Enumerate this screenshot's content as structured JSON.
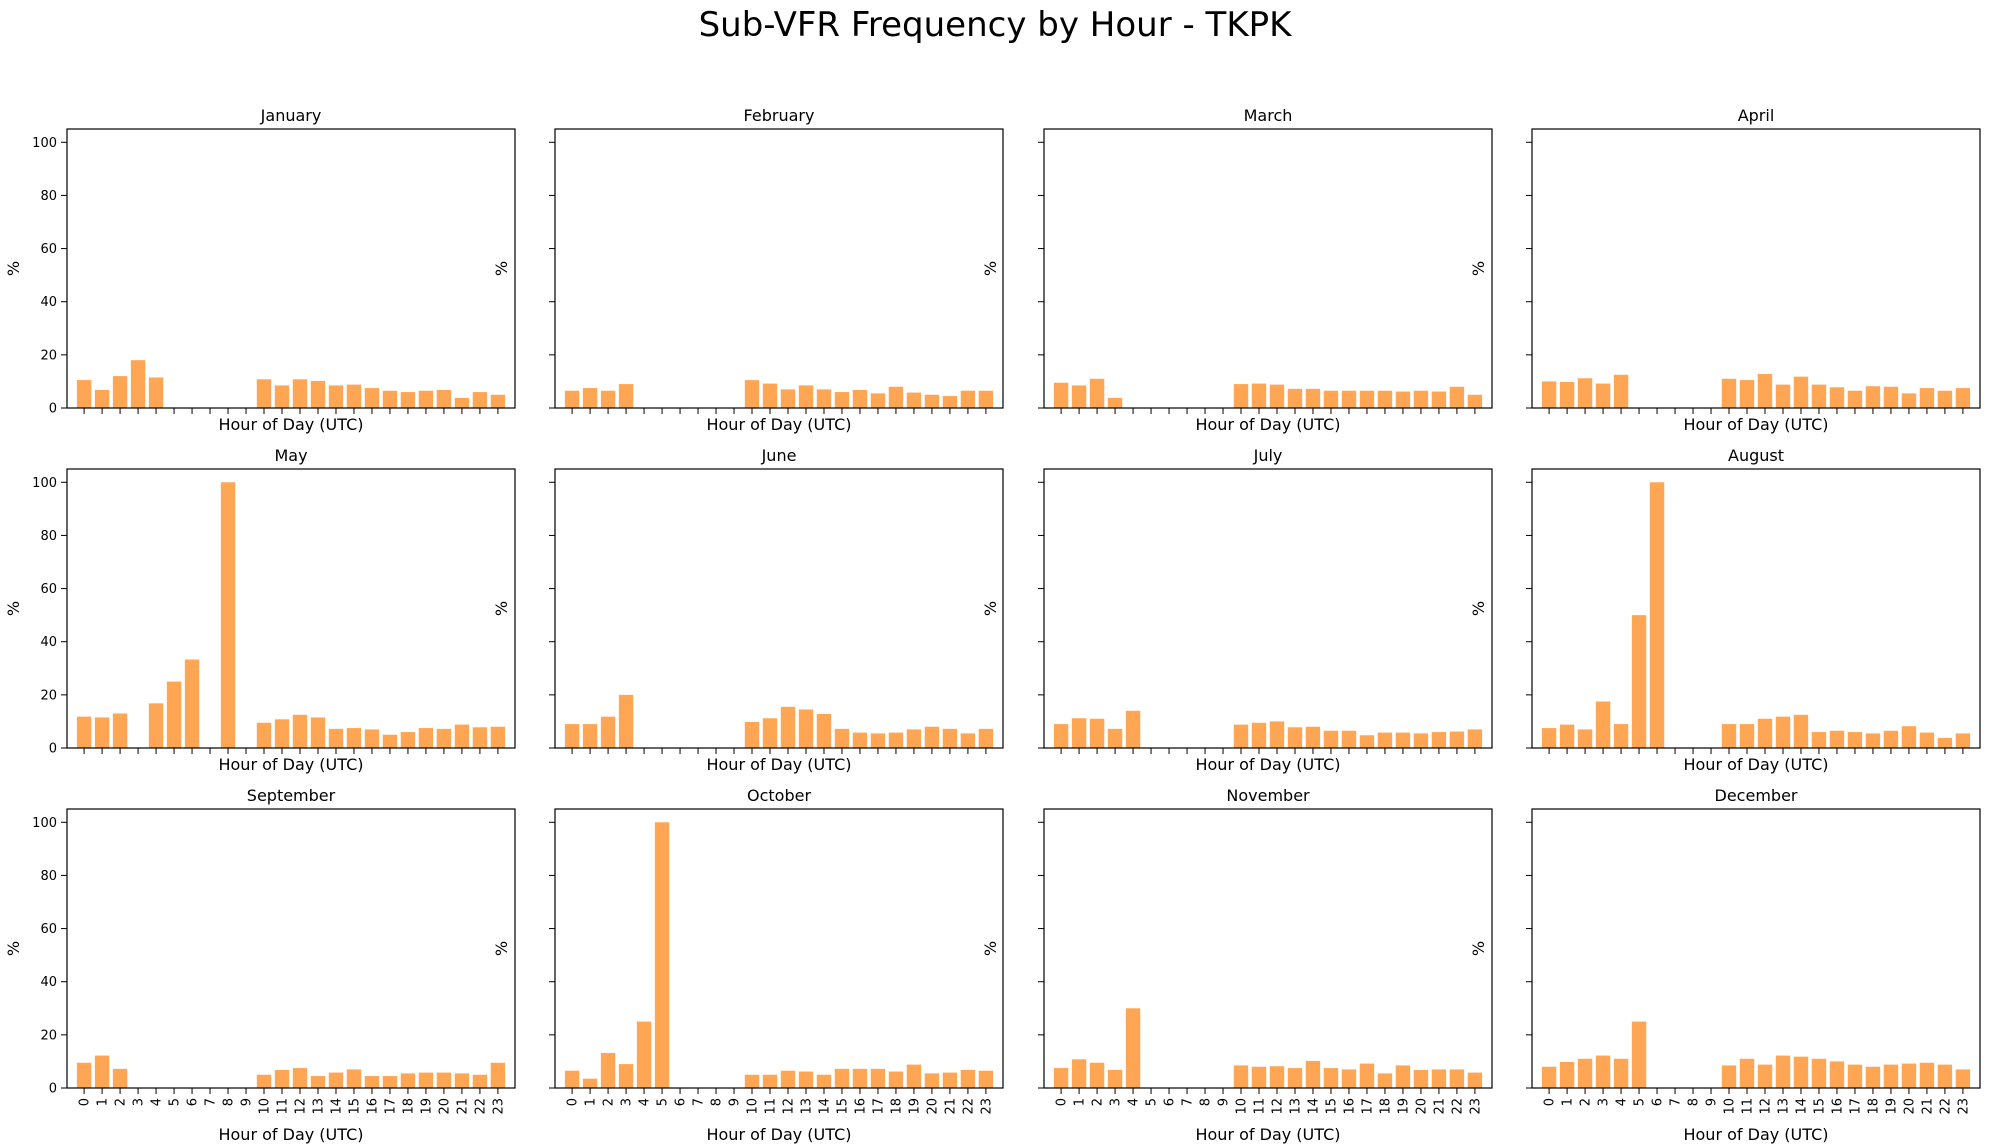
{
  "figure": {
    "title": "Sub-VFR Frequency by Hour - TKPK",
    "bar_color": "#FFA451"
  },
  "chart_data": {
    "type": "bar",
    "layout": "3x4 grid, shared axes",
    "xlabel": "Hour of Day (UTC)",
    "ylabel": "%",
    "ylim": [
      0,
      105
    ],
    "yticks": [
      0,
      20,
      40,
      60,
      80,
      100
    ],
    "hours": [
      "0",
      "1",
      "2",
      "3",
      "4",
      "5",
      "6",
      "7",
      "8",
      "9",
      "10",
      "11",
      "12",
      "13",
      "14",
      "15",
      "16",
      "17",
      "18",
      "19",
      "20",
      "21",
      "22",
      "23"
    ],
    "grid": false,
    "panels": [
      {
        "title": "January",
        "values": [
          10.5,
          6.8,
          12,
          18,
          11.5,
          null,
          null,
          null,
          null,
          null,
          10.8,
          8.5,
          10.8,
          10.2,
          8.5,
          8.8,
          7.5,
          6.5,
          6,
          6.5,
          6.8,
          3.8,
          6,
          5
        ]
      },
      {
        "title": "February",
        "values": [
          6.5,
          7.5,
          6.5,
          9,
          null,
          null,
          null,
          null,
          null,
          null,
          10.5,
          9.2,
          7,
          8.5,
          7,
          6,
          6.8,
          5.5,
          8,
          5.8,
          5,
          4.5,
          6.5,
          6.5
        ]
      },
      {
        "title": "March",
        "values": [
          9.5,
          8.5,
          11,
          3.8,
          null,
          null,
          null,
          null,
          null,
          null,
          9,
          9.2,
          8.8,
          7.2,
          7.2,
          6.5,
          6.5,
          6.5,
          6.5,
          6.2,
          6.5,
          6.2,
          8,
          5
        ]
      },
      {
        "title": "April",
        "values": [
          10,
          9.8,
          11.2,
          9.2,
          12.5,
          null,
          null,
          null,
          null,
          null,
          11,
          10.5,
          12.8,
          8.8,
          11.8,
          8.8,
          7.8,
          6.5,
          8.2,
          8,
          5.5,
          7.5,
          6.5,
          7.5
        ]
      },
      {
        "title": "May",
        "values": [
          11.8,
          11.5,
          13,
          null,
          16.8,
          25,
          33.3,
          null,
          100,
          null,
          9.5,
          10.8,
          12.5,
          11.5,
          7.2,
          7.5,
          7,
          5,
          6,
          7.5,
          7.2,
          8.8,
          7.8,
          8
        ]
      },
      {
        "title": "June",
        "values": [
          9,
          9,
          11.8,
          20,
          null,
          null,
          null,
          null,
          null,
          null,
          9.8,
          11.2,
          15.5,
          14.5,
          12.8,
          7.2,
          5.8,
          5.5,
          5.8,
          7,
          8,
          7.2,
          5.5,
          7.2
        ]
      },
      {
        "title": "July",
        "values": [
          9,
          11.2,
          11,
          7.2,
          14,
          null,
          null,
          null,
          null,
          null,
          8.8,
          9.5,
          10,
          7.8,
          8,
          6.5,
          6.5,
          4.8,
          5.8,
          5.8,
          5.5,
          6,
          6.2,
          7
        ]
      },
      {
        "title": "August",
        "values": [
          7.5,
          8.8,
          7,
          17.5,
          9,
          50,
          100,
          null,
          null,
          null,
          9,
          9,
          11,
          11.8,
          12.5,
          6,
          6.5,
          6,
          5.5,
          6.5,
          8.2,
          5.8,
          3.8,
          5.5
        ]
      },
      {
        "title": "September",
        "values": [
          9.5,
          12.2,
          7.2,
          null,
          null,
          null,
          null,
          null,
          null,
          null,
          5,
          6.8,
          7.5,
          4.5,
          5.8,
          7,
          4.5,
          4.5,
          5.5,
          5.8,
          5.8,
          5.5,
          5,
          9.5
        ]
      },
      {
        "title": "October",
        "values": [
          6.5,
          3.5,
          13.2,
          9,
          25,
          100,
          null,
          null,
          null,
          null,
          5,
          5,
          6.5,
          6.2,
          5,
          7.2,
          7.2,
          7.2,
          6.2,
          8.8,
          5.5,
          5.8,
          6.8,
          6.5
        ]
      },
      {
        "title": "November",
        "values": [
          7.5,
          10.8,
          9.5,
          6.8,
          30,
          null,
          null,
          null,
          null,
          null,
          8.5,
          8,
          8.2,
          7.5,
          10.2,
          7.5,
          7,
          9.2,
          5.5,
          8.5,
          6.8,
          7,
          7,
          5.8
        ]
      },
      {
        "title": "December",
        "values": [
          8,
          9.8,
          11,
          12.2,
          11,
          25,
          null,
          null,
          null,
          null,
          8.5,
          11,
          8.8,
          12.2,
          11.8,
          11,
          10,
          8.8,
          8,
          8.8,
          9.2,
          9.5,
          8.8,
          7
        ]
      }
    ]
  }
}
